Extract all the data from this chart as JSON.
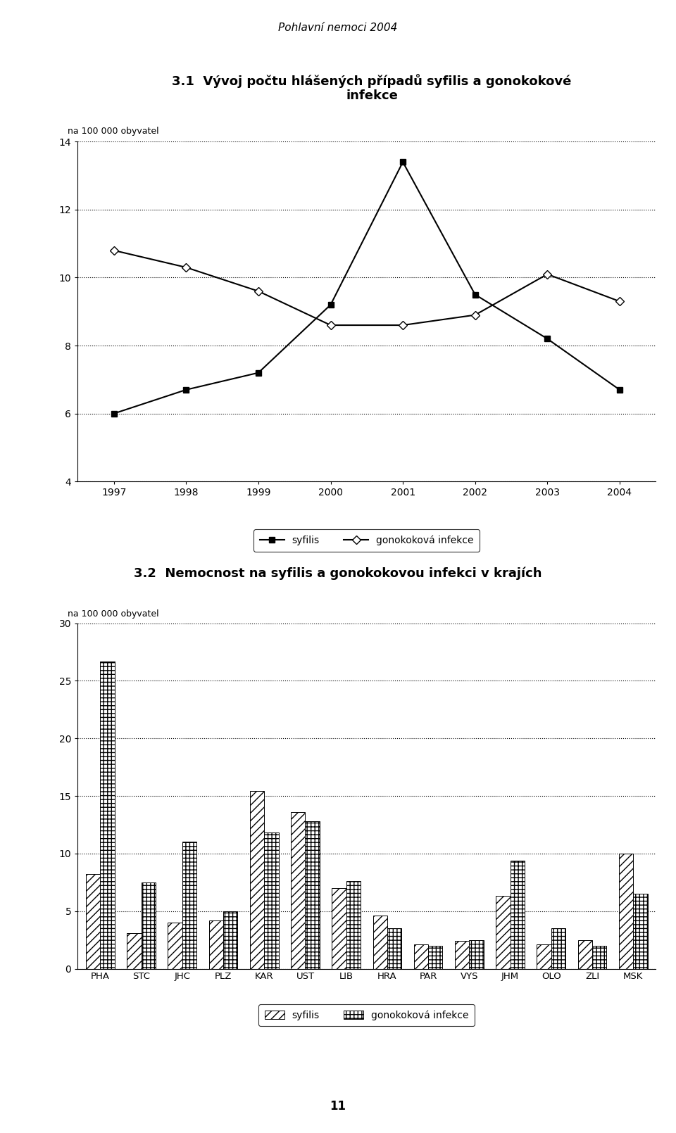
{
  "page_title": "Pohlavní nemoci 2004",
  "page_number": "11",
  "chart1_title_line1": "3.1  Vývoj počtu hlášených případů syfilis a gonokokové",
  "chart1_title_line2": "infekce",
  "chart1_ylabel": "na 100 000 obyvatel",
  "chart1_years": [
    1997,
    1998,
    1999,
    2000,
    2001,
    2002,
    2003,
    2004
  ],
  "chart1_syfilis": [
    6.0,
    6.7,
    7.2,
    9.2,
    13.4,
    9.5,
    8.2,
    6.7
  ],
  "chart1_gonokokova": [
    10.8,
    10.3,
    9.6,
    8.6,
    8.6,
    8.9,
    10.1,
    9.3
  ],
  "chart1_ylim": [
    4,
    14
  ],
  "chart1_yticks": [
    4,
    6,
    8,
    10,
    12,
    14
  ],
  "chart2_title": "3.2  Nemocnost na syfilis a gonokokovou infekci v krajích",
  "chart2_ylabel": "na 100 000 obyvatel",
  "chart2_categories": [
    "PHA",
    "STC",
    "JHC",
    "PLZ",
    "KAR",
    "UST",
    "LIB",
    "HRA",
    "PAR",
    "VYS",
    "JHM",
    "OLO",
    "ZLI",
    "MSK"
  ],
  "chart2_syfilis": [
    8.2,
    3.1,
    4.0,
    4.2,
    15.4,
    13.6,
    7.0,
    4.6,
    2.1,
    2.4,
    6.3,
    2.1,
    2.5,
    10.0
  ],
  "chart2_gonokokova": [
    26.7,
    7.5,
    11.0,
    5.0,
    11.8,
    12.8,
    7.6,
    3.5,
    2.0,
    2.5,
    9.4,
    3.5,
    2.0,
    6.5
  ],
  "chart2_ylim": [
    0,
    30
  ],
  "chart2_yticks": [
    0,
    5,
    10,
    15,
    20,
    25,
    30
  ]
}
